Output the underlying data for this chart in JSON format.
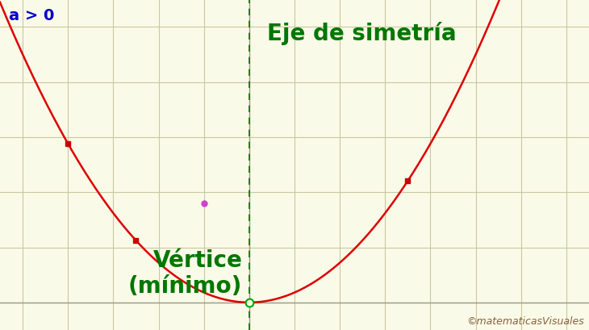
{
  "background_color": "#fafae8",
  "grid_color": "#c8c8a0",
  "parabola_color": "#dd0000",
  "axis_line_color": "#999988",
  "symmetry_axis_color": "#007700",
  "vertex_x": 0.0,
  "vertex_y": 0.0,
  "a_coeff": 0.18,
  "x_min": -5.5,
  "x_max": 7.5,
  "y_min": -0.5,
  "y_max": 5.5,
  "label_a0": "a > 0",
  "label_a0_color": "#0000cc",
  "label_a0_fontsize": 14,
  "label_eje": "Eje de simetría",
  "label_eje_color": "#007700",
  "label_eje_fontsize": 20,
  "label_vertice_line1": "Vértice",
  "label_vertice_line2": "(mínimo)",
  "label_vertice_color": "#007700",
  "label_vertice_fontsize": 20,
  "red_dot_color": "#cc0000",
  "vertex_dot_color": "#00aa00",
  "magenta_dot_color": "#cc44cc",
  "magenta_dot_x": -1.0,
  "magenta_dot_y": 1.8,
  "red_dots": [
    [
      -4.0,
      null
    ],
    [
      -2.5,
      null
    ],
    [
      3.5,
      null
    ]
  ],
  "watermark_text": "©matematicasVisuales",
  "watermark_color": "#8b5e3c",
  "watermark_fontsize": 9,
  "figsize": [
    7.3,
    4.1
  ],
  "dpi": 100
}
